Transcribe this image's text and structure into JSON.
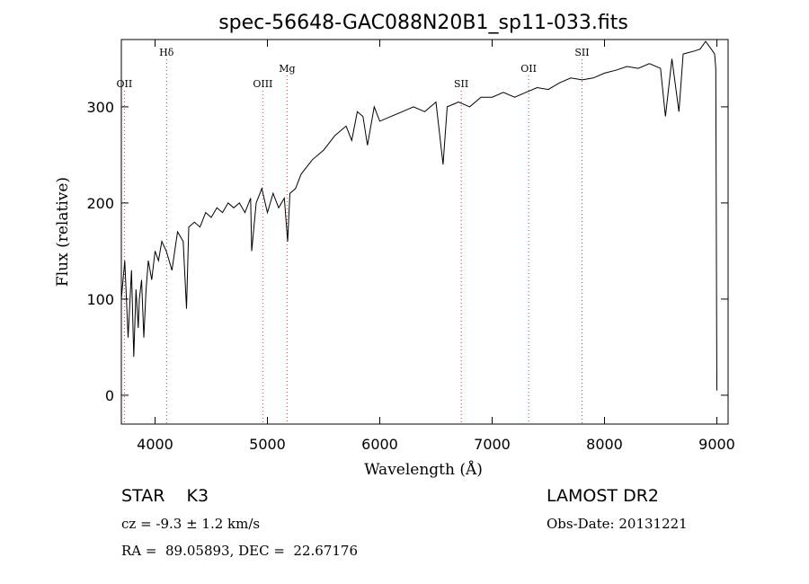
{
  "chart_data": {
    "type": "line",
    "title": "spec-56648-GAC088N20B1_sp11-033.fits",
    "xlabel": "Wavelength (Å)",
    "ylabel": "Flux (relative)",
    "xlim": [
      3700,
      9100
    ],
    "ylim": [
      -30,
      370
    ],
    "xticks": [
      4000,
      5000,
      6000,
      7000,
      8000,
      9000
    ],
    "yticks": [
      0,
      100,
      200,
      300
    ],
    "grid": false,
    "spectrum": {
      "x": [
        3700,
        3730,
        3760,
        3790,
        3810,
        3830,
        3850,
        3860,
        3880,
        3900,
        3920,
        3940,
        3970,
        4000,
        4030,
        4060,
        4100,
        4150,
        4200,
        4250,
        4280,
        4300,
        4350,
        4400,
        4450,
        4500,
        4550,
        4600,
        4650,
        4700,
        4750,
        4800,
        4850,
        4860,
        4900,
        4950,
        5000,
        5050,
        5100,
        5150,
        5180,
        5200,
        5250,
        5300,
        5400,
        5500,
        5600,
        5700,
        5750,
        5800,
        5850,
        5890,
        5950,
        6000,
        6100,
        6200,
        6300,
        6400,
        6500,
        6563,
        6600,
        6700,
        6800,
        6900,
        7000,
        7100,
        7200,
        7300,
        7400,
        7500,
        7600,
        7700,
        7800,
        7900,
        8000,
        8100,
        8200,
        8300,
        8400,
        8498,
        8542,
        8600,
        8662,
        8700,
        8800,
        8850,
        8900,
        8950,
        8980,
        8990,
        9000
      ],
      "y": [
        100,
        140,
        60,
        130,
        40,
        110,
        70,
        100,
        120,
        60,
        110,
        140,
        120,
        150,
        140,
        160,
        150,
        130,
        170,
        160,
        90,
        175,
        180,
        175,
        190,
        185,
        195,
        190,
        200,
        195,
        200,
        190,
        205,
        150,
        200,
        215,
        190,
        210,
        195,
        205,
        160,
        210,
        215,
        230,
        245,
        255,
        270,
        280,
        265,
        295,
        290,
        260,
        300,
        285,
        290,
        295,
        300,
        295,
        305,
        240,
        300,
        305,
        300,
        310,
        310,
        315,
        310,
        315,
        320,
        318,
        325,
        330,
        328,
        330,
        335,
        338,
        342,
        340,
        345,
        340,
        290,
        350,
        295,
        355,
        358,
        360,
        368,
        360,
        355,
        340,
        5
      ]
    },
    "line_markers": [
      {
        "label": "OII",
        "x": 3727,
        "row": 2
      },
      {
        "label": "Hδ",
        "x": 4102,
        "row": 0
      },
      {
        "label": "OIII",
        "x": 4959,
        "row": 2
      },
      {
        "label": "Mg",
        "x": 5175,
        "row": 1
      },
      {
        "label": "SII",
        "x": 6725,
        "row": 2
      },
      {
        "label": "OII",
        "x": 7325,
        "row": 1
      },
      {
        "label": "SII",
        "x": 7800,
        "row": 0
      }
    ]
  },
  "info": {
    "class_line": "STAR    K3",
    "cz_line": "cz = -9.3 ± 1.2 km/s",
    "radec_line": "RA =  89.05893, DEC =  22.67176",
    "survey": "LAMOST DR2",
    "obs_date": "Obs-Date: 20131221"
  }
}
